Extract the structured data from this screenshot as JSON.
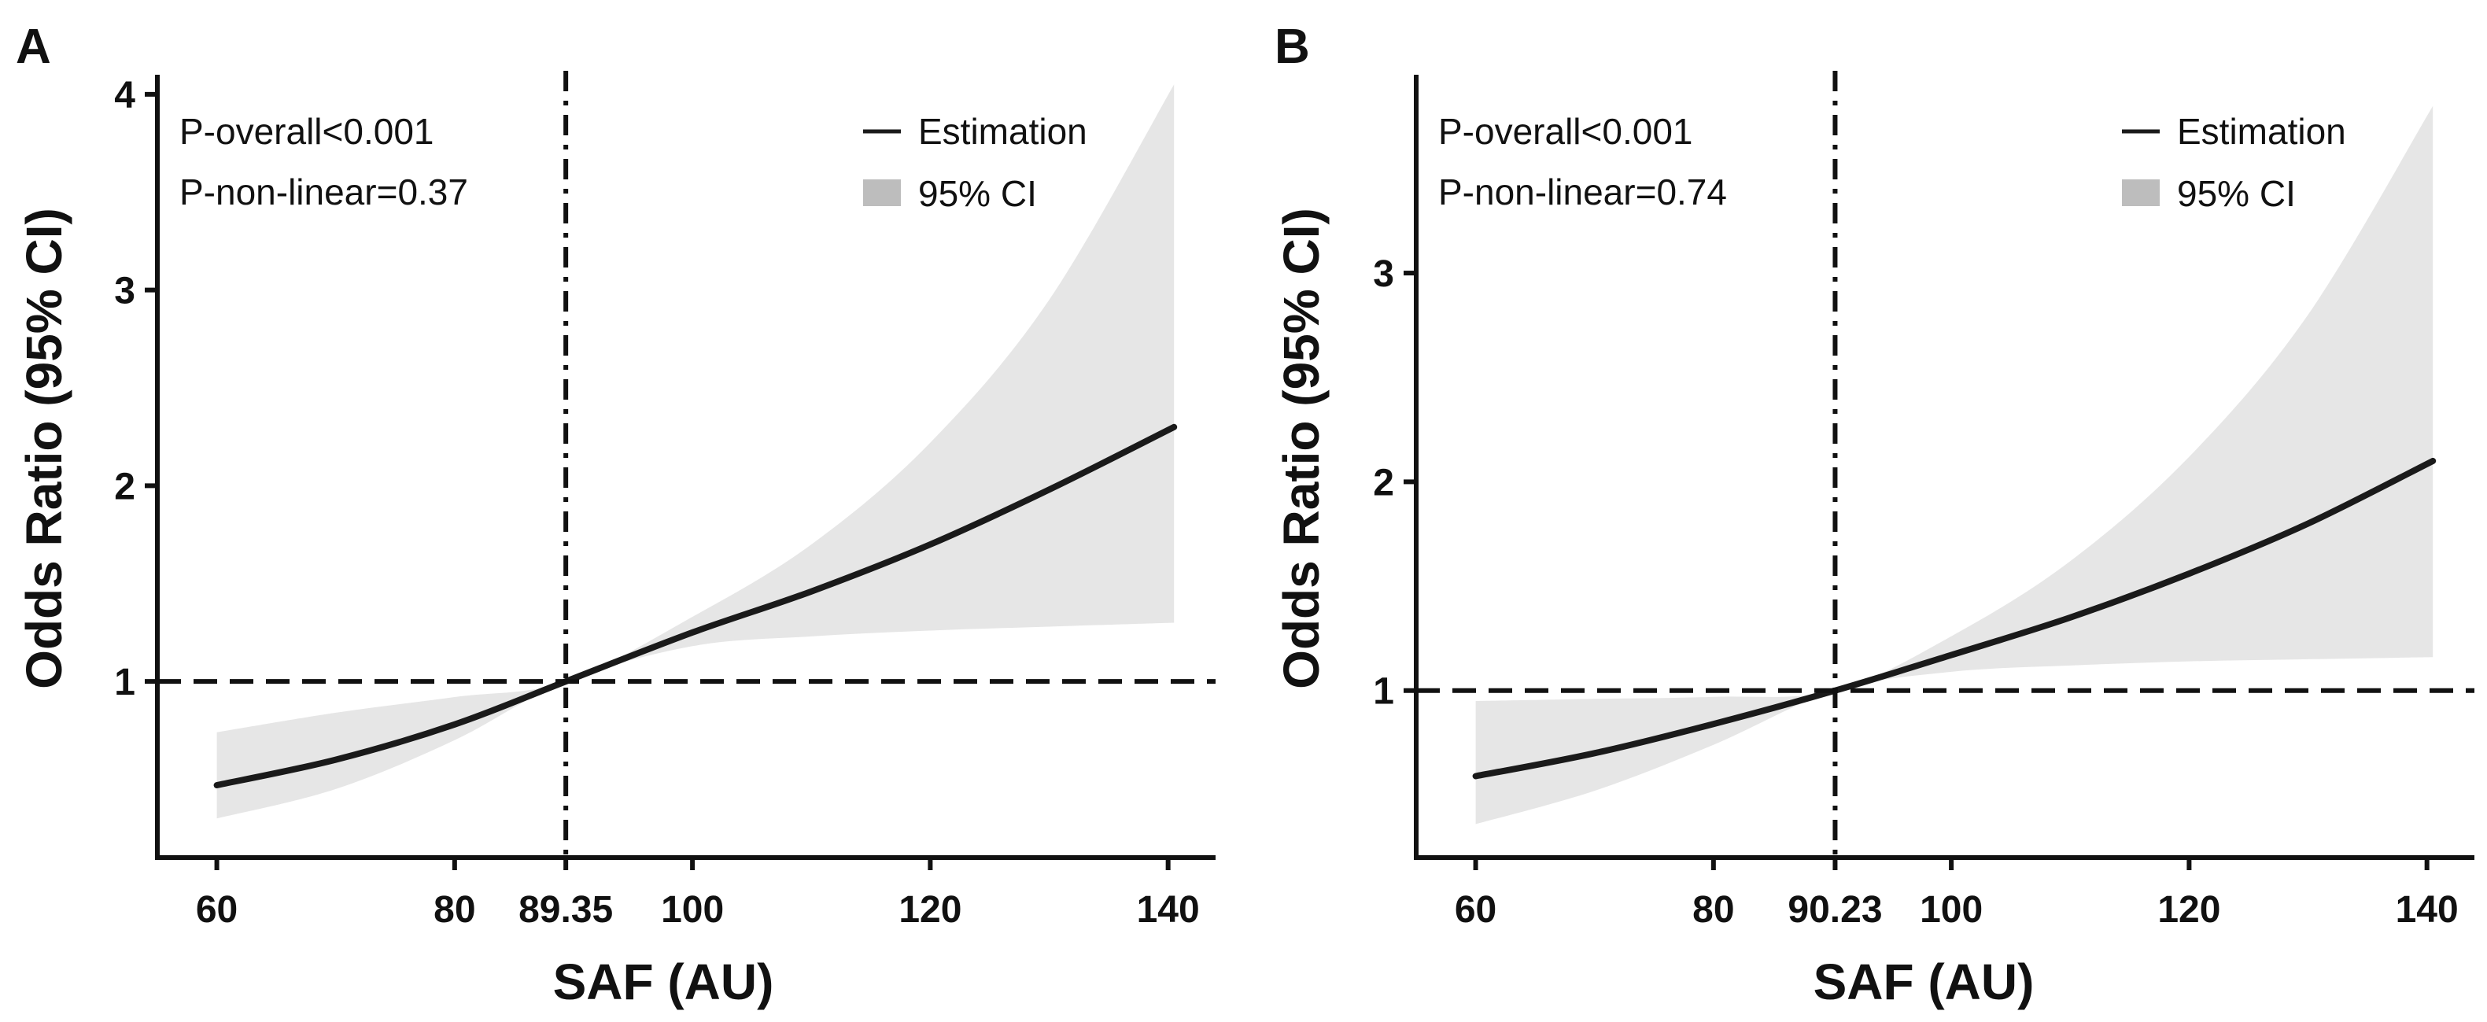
{
  "colors": {
    "curve": "#1a1a1a",
    "ci_band": "#e6e6e6",
    "legend_ci": "#bdbdbd",
    "axis": "#111111",
    "reference": "#111111"
  },
  "chart_data": [
    {
      "type": "line",
      "panel_label": "A",
      "xlabel": "SAF (AU)",
      "ylabel": "Odds Ratio (95% CI)",
      "xlim": [
        55,
        143
      ],
      "ylim": [
        0.1,
        4.1
      ],
      "x_ticks": [
        60,
        80,
        89.35,
        100,
        120,
        140
      ],
      "x_tick_labels": [
        "60",
        "80",
        "89.35",
        "100",
        "120",
        "140"
      ],
      "y_ticks": [
        1,
        2,
        3,
        4
      ],
      "y_tick_labels": [
        "1",
        "2",
        "3",
        "4"
      ],
      "reference_line_y": 1,
      "cutoff_x": 89.35,
      "annotations": [
        "P-overall<0.001",
        "P-non-linear=0.37"
      ],
      "legend": {
        "position": "top-right",
        "line_label": "Estimation",
        "band_label": "95% CI"
      },
      "series": [
        {
          "name": "Estimation",
          "x": [
            60,
            70,
            80,
            89.35,
            100,
            110,
            120,
            130,
            140.5
          ],
          "y": [
            0.47,
            0.6,
            0.78,
            1.0,
            1.25,
            1.46,
            1.7,
            1.98,
            2.3
          ],
          "lower": [
            0.3,
            0.45,
            0.7,
            1.0,
            1.18,
            1.23,
            1.26,
            1.28,
            1.3
          ],
          "upper": [
            0.74,
            0.84,
            0.92,
            1.0,
            1.33,
            1.7,
            2.22,
            2.95,
            4.05
          ]
        }
      ]
    },
    {
      "type": "line",
      "panel_label": "B",
      "xlabel": "SAF (AU)",
      "ylabel": "Odds Ratio (95% CI)",
      "xlim": [
        55,
        143
      ],
      "ylim": [
        0.2,
        3.95
      ],
      "x_ticks": [
        60,
        80,
        90.23,
        100,
        120,
        140
      ],
      "x_tick_labels": [
        "60",
        "80",
        "90.23",
        "100",
        "120",
        "140"
      ],
      "y_ticks": [
        1,
        2,
        3
      ],
      "y_tick_labels": [
        "1",
        "2",
        "3"
      ],
      "reference_line_y": 1,
      "cutoff_x": 90.23,
      "annotations": [
        "P-overall<0.001",
        "P-non-linear=0.74"
      ],
      "legend": {
        "position": "top-right",
        "line_label": "Estimation",
        "band_label": "95% CI"
      },
      "series": [
        {
          "name": "Estimation",
          "x": [
            60,
            70,
            80,
            90.23,
            100,
            110,
            120,
            130,
            140.5
          ],
          "y": [
            0.59,
            0.7,
            0.84,
            1.0,
            1.17,
            1.35,
            1.56,
            1.8,
            2.1
          ],
          "lower": [
            0.36,
            0.52,
            0.74,
            1.0,
            1.09,
            1.12,
            1.14,
            1.15,
            1.16
          ],
          "upper": [
            0.95,
            0.96,
            0.97,
            1.0,
            1.26,
            1.62,
            2.12,
            2.8,
            3.8
          ]
        }
      ]
    }
  ]
}
